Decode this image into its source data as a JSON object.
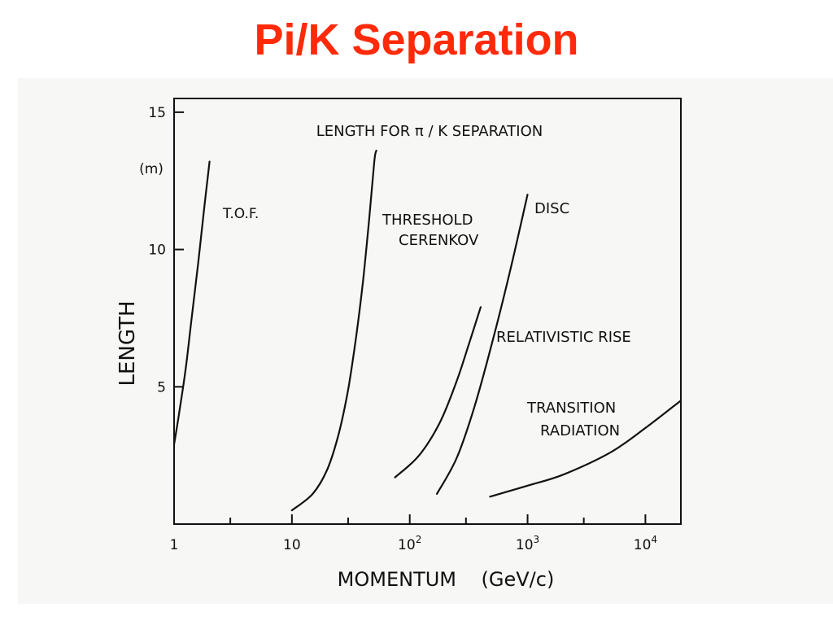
{
  "slide": {
    "title": "Pi/K Separation",
    "title_color": "#ff2a0a"
  },
  "chart_data": {
    "type": "line",
    "title": "LENGTH FOR π / K SEPARATION",
    "xlabel": "MOMENTUM    (GeV/c)",
    "ylabel": "LENGTH",
    "yunit": "(m)",
    "x_scale": "log",
    "y_scale": "linear",
    "xlim": [
      1,
      20000
    ],
    "ylim": [
      0,
      15.5
    ],
    "x_major_ticks": [
      {
        "value": 1,
        "label": "1",
        "base": "",
        "exp": ""
      },
      {
        "value": 10,
        "label": "10",
        "base": "",
        "exp": ""
      },
      {
        "value": 100,
        "label": "",
        "base": "10",
        "exp": "2"
      },
      {
        "value": 1000,
        "label": "",
        "base": "10",
        "exp": "3"
      },
      {
        "value": 10000,
        "label": "",
        "base": "10",
        "exp": "4"
      }
    ],
    "x_minor_ticks": [
      3,
      30,
      300,
      3000
    ],
    "y_ticks": [
      {
        "value": 5,
        "label": "5"
      },
      {
        "value": 10,
        "label": "10"
      },
      {
        "value": 15,
        "label": "15"
      }
    ],
    "grid": false,
    "line_color": "#111111",
    "series": [
      {
        "name": "T.O.F.",
        "points": [
          [
            1.0,
            2.9
          ],
          [
            1.1,
            4.0
          ],
          [
            1.25,
            5.6
          ],
          [
            1.4,
            7.4
          ],
          [
            1.6,
            9.5
          ],
          [
            1.8,
            11.5
          ],
          [
            2.0,
            13.2
          ]
        ]
      },
      {
        "name": "THRESHOLD CERENKOV",
        "points": [
          [
            10,
            0.5
          ],
          [
            15,
            1.1
          ],
          [
            20,
            2.0
          ],
          [
            25,
            3.3
          ],
          [
            30,
            4.9
          ],
          [
            35,
            6.8
          ],
          [
            40,
            8.8
          ],
          [
            45,
            11.0
          ],
          [
            50,
            13.2
          ],
          [
            52,
            13.6
          ]
        ]
      },
      {
        "name": "RELATIVISTIC RISE",
        "points": [
          [
            75,
            1.7
          ],
          [
            120,
            2.5
          ],
          [
            180,
            3.7
          ],
          [
            250,
            5.2
          ],
          [
            320,
            6.6
          ],
          [
            400,
            7.9
          ]
        ]
      },
      {
        "name": "DISC",
        "points": [
          [
            170,
            1.1
          ],
          [
            250,
            2.4
          ],
          [
            350,
            4.2
          ],
          [
            500,
            6.6
          ],
          [
            700,
            9.1
          ],
          [
            1000,
            12.0
          ]
        ]
      },
      {
        "name": "TRANSITION RADIATION",
        "points": [
          [
            480,
            1.0
          ],
          [
            1000,
            1.4
          ],
          [
            2000,
            1.8
          ],
          [
            5000,
            2.6
          ],
          [
            10000,
            3.5
          ],
          [
            20000,
            4.5
          ]
        ]
      }
    ],
    "annotations": [
      {
        "series": "T.O.F.",
        "lines": [
          "T.O.F."
        ]
      },
      {
        "series": "THRESHOLD CERENKOV",
        "lines": [
          "THRESHOLD",
          "CERENKOV"
        ]
      },
      {
        "series": "DISC",
        "lines": [
          "DISC"
        ]
      },
      {
        "series": "RELATIVISTIC RISE",
        "lines": [
          "RELATIVISTIC RISE"
        ]
      },
      {
        "series": "TRANSITION RADIATION",
        "lines": [
          "TRANSITION",
          "RADIATION"
        ]
      }
    ]
  }
}
